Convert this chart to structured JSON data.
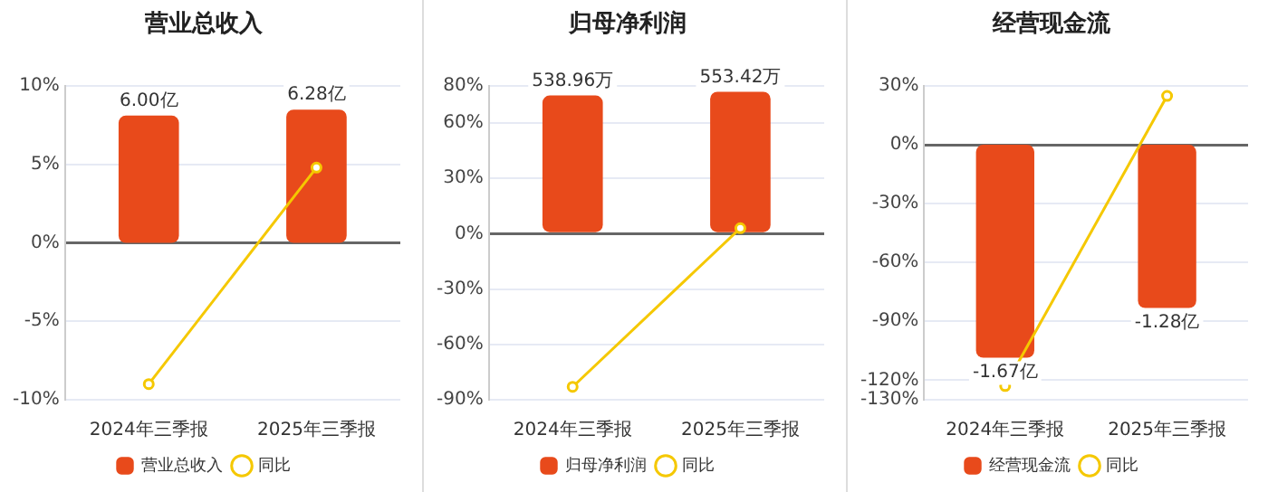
{
  "chart_data": [
    {
      "type": "bar",
      "title": "营业总收入",
      "categories": [
        "2024年三季报",
        "2025年三季报"
      ],
      "series": [
        {
          "name": "营业总收入",
          "color": "#e84a1b",
          "values": [
            6.0,
            6.28
          ],
          "axis": "y2",
          "value_labels": [
            "6.00亿",
            "6.28亿"
          ]
        },
        {
          "type": "line",
          "name": "同比",
          "color": "#f5c800",
          "values": [
            -9.0,
            4.8
          ],
          "marker": "circle"
        }
      ],
      "ylim": [
        -10,
        10
      ],
      "yticks": [
        {
          "value": -10,
          "label": "-10%"
        },
        {
          "value": -5,
          "label": "-5%"
        },
        {
          "value": 0,
          "label": "0%"
        },
        {
          "value": 5,
          "label": "5%"
        },
        {
          "value": 10,
          "label": "10%"
        }
      ],
      "y2lim": [
        -7.39,
        7.39
      ],
      "grid": "y",
      "legend": "bottom"
    },
    {
      "type": "bar",
      "title": "归母净利润",
      "categories": [
        "2024年三季报",
        "2025年三季报"
      ],
      "series": [
        {
          "name": "归母净利润",
          "color": "#e84a1b",
          "values": [
            538.96,
            553.42
          ],
          "axis": "y2",
          "value_labels": [
            "538.96万",
            "553.42万"
          ]
        },
        {
          "type": "line",
          "name": "同比",
          "color": "#f5c800",
          "values": [
            -83,
            3
          ],
          "marker": "circle"
        }
      ],
      "ylim": [
        -90,
        80
      ],
      "yticks": [
        {
          "value": -90,
          "label": "-90%"
        },
        {
          "value": -60,
          "label": "-60%"
        },
        {
          "value": -30,
          "label": "-30%"
        },
        {
          "value": 0,
          "label": "0%"
        },
        {
          "value": 30,
          "label": "30%"
        },
        {
          "value": 60,
          "label": "60%"
        },
        {
          "value": 80,
          "label": "80%"
        }
      ],
      "y2lim": [
        -661,
        576
      ],
      "grid": "y",
      "legend": "bottom"
    },
    {
      "type": "bar",
      "title": "经营现金流",
      "categories": [
        "2024年三季报",
        "2025年三季报"
      ],
      "series": [
        {
          "name": "经营现金流",
          "color": "#e84a1b",
          "values": [
            -1.67,
            -1.28
          ],
          "axis": "y2",
          "value_labels": [
            "-1.67亿",
            "-1.28亿"
          ]
        },
        {
          "type": "line",
          "name": "同比",
          "color": "#f5c800",
          "values": [
            -123,
            25
          ],
          "marker": "circle"
        }
      ],
      "ylim": [
        -130,
        30
      ],
      "yticks": [
        {
          "value": -130,
          "label": "-130%"
        },
        {
          "value": -120,
          "label": "-120%"
        },
        {
          "value": -90,
          "label": "-90%"
        },
        {
          "value": -60,
          "label": "-60%"
        },
        {
          "value": -30,
          "label": "-30%"
        },
        {
          "value": 0,
          "label": "0%"
        },
        {
          "value": 30,
          "label": "30%"
        }
      ],
      "y2lim": [
        -2.0,
        0.46
      ],
      "grid": "y",
      "legend": "bottom"
    }
  ]
}
